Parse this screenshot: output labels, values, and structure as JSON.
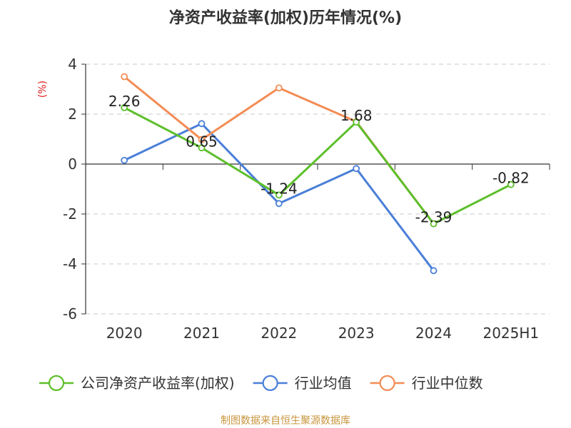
{
  "chart_data": {
    "type": "line",
    "title": "净资产收益率(加权)历年情况(%)",
    "ylabel": "(%)",
    "categories": [
      "2020",
      "2021",
      "2022",
      "2023",
      "2024",
      "2025H1"
    ],
    "ylim": [
      -6,
      4
    ],
    "yticks": [
      -6,
      -4,
      -2,
      0,
      2,
      4
    ],
    "grid": true,
    "legend_position": "bottom",
    "series": [
      {
        "name": "公司净资产收益率(加权)",
        "color": "#5cbf2a",
        "values": [
          2.26,
          0.65,
          -1.24,
          1.68,
          -2.39,
          -0.82
        ],
        "labels": [
          "2.26",
          "0.65",
          "-1.24",
          "1.68",
          "-2.39",
          "-0.82"
        ]
      },
      {
        "name": "行业均值",
        "color": "#4a7fd8",
        "values": [
          0.15,
          1.62,
          -1.58,
          -0.18,
          -4.27,
          null
        ]
      },
      {
        "name": "行业中位数",
        "color": "#f48c55",
        "values": [
          3.5,
          0.98,
          3.05,
          1.7,
          -2.39,
          null
        ]
      }
    ],
    "source": "制图数据来自恒生聚源数据库"
  }
}
